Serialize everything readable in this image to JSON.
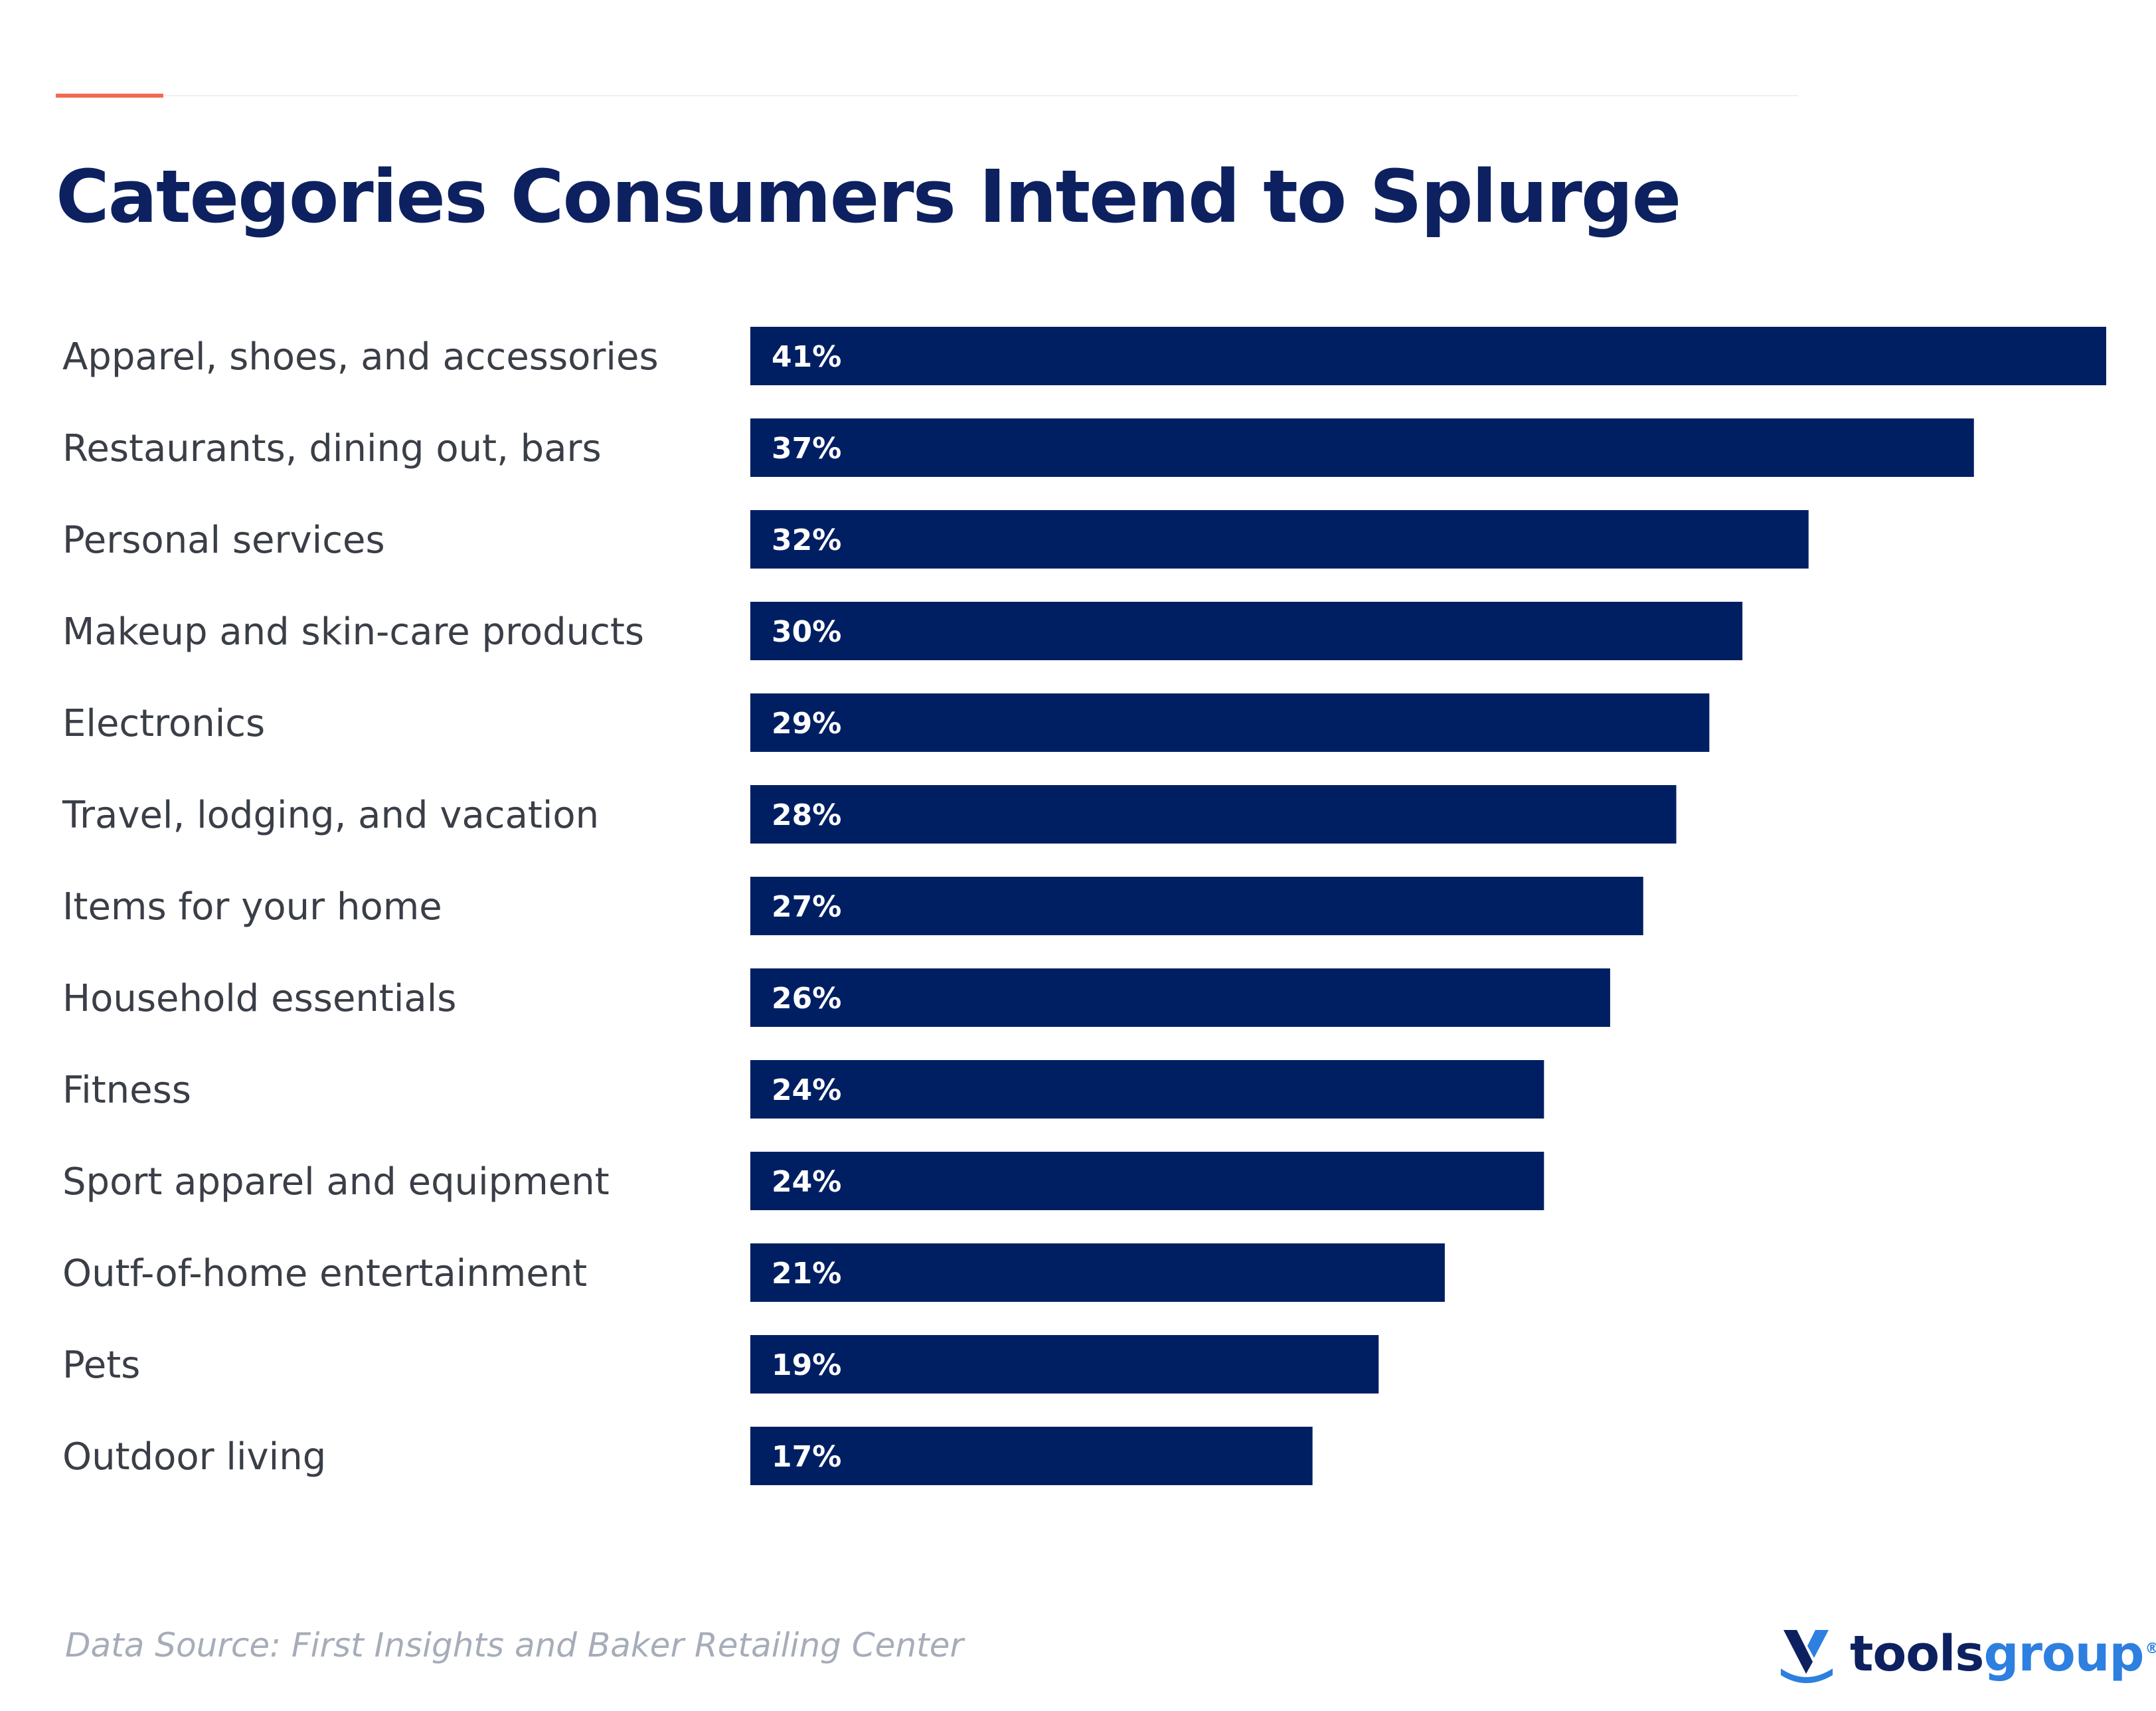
{
  "title": "Categories Consumers Intend to Splurge",
  "source": "Data Source: First Insights and Baker Retailing Center",
  "logo": {
    "part1": "tools",
    "part2": "group",
    "reg": "®"
  },
  "colors": {
    "bar": "#001f63",
    "accent": "#f26b50",
    "title": "#0d2160",
    "logo_blue": "#2d7fe0"
  },
  "chart_data": {
    "type": "bar",
    "orientation": "horizontal",
    "categories": [
      "Apparel, shoes, and accessories",
      "Restaurants, dining out, bars",
      "Personal services",
      "Makeup and skin-care products",
      "Electronics",
      "Travel, lodging, and vacation",
      "Items  for your home",
      "Household essentials",
      "Fitness",
      "Sport apparel and equipment",
      "Outf-of-home entertainment",
      "Pets",
      "Outdoor living"
    ],
    "values": [
      41,
      37,
      32,
      30,
      29,
      28,
      27,
      26,
      24,
      24,
      21,
      19,
      17
    ],
    "value_labels": [
      "41%",
      "37%",
      "32%",
      "30%",
      "29%",
      "28%",
      "27%",
      "26%",
      "24%",
      "24%",
      "21%",
      "19%",
      "17%"
    ],
    "title": "Categories Consumers Intend to Splurge",
    "xlim": [
      0,
      41
    ],
    "grid": false,
    "legend": "none"
  }
}
